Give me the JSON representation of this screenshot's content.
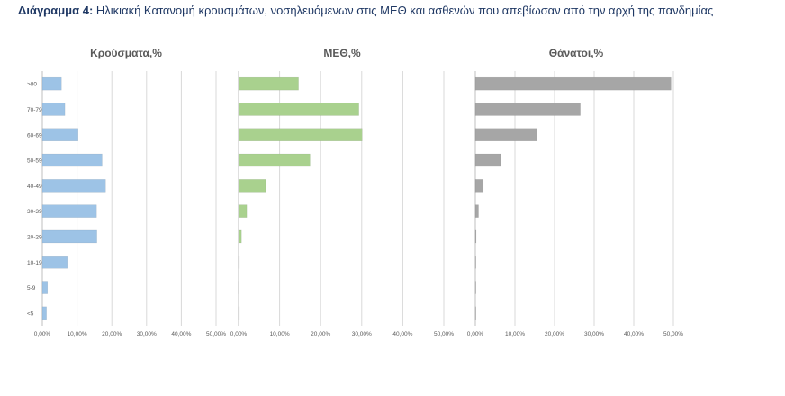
{
  "caption": {
    "label": "Διάγραμμα 4:",
    "text": "Ηλικιακή Κατανομή κρουσμάτων, νοσηλευόμενων στις ΜΕΘ και ασθενών που απεβίωσαν από την αρχή της πανδημίας"
  },
  "chart_data": [
    {
      "type": "bar",
      "orientation": "horizontal",
      "title": "Κρούσματα,%",
      "categories": [
        ">80",
        "70-79",
        "60-69",
        "50-59",
        "40-49",
        "30-39",
        "20-29",
        "10-19",
        "5-9",
        "<5"
      ],
      "values": [
        5.5,
        6.5,
        10.3,
        17.2,
        18.2,
        15.6,
        15.7,
        7.2,
        1.5,
        1.2
      ],
      "xlim": [
        0,
        50
      ],
      "xticks": [
        "0,00%",
        "10,00%",
        "20,00%",
        "30,00%",
        "40,00%",
        "50,00%"
      ],
      "grid": true,
      "color": "#9dc3e6"
    },
    {
      "type": "bar",
      "orientation": "horizontal",
      "title": "ΜΕΘ,%",
      "categories": [
        ">80",
        "70-79",
        "60-69",
        "50-59",
        "40-49",
        "30-39",
        "20-29",
        "10-19",
        "5-9",
        "<5"
      ],
      "values": [
        14.6,
        29.3,
        30.1,
        17.4,
        6.6,
        2.0,
        0.7,
        0.2,
        0.1,
        0.2
      ],
      "xlim": [
        0,
        50
      ],
      "xticks": [
        "0,00%",
        "10,00%",
        "20,00%",
        "30,00%",
        "40,00%",
        "50,00%"
      ],
      "grid": true,
      "color": "#a9d18e"
    },
    {
      "type": "bar",
      "orientation": "horizontal",
      "title": "Θάνατοι,%",
      "categories": [
        ">80",
        "70-79",
        "60-69",
        "50-59",
        "40-49",
        "30-39",
        "20-29",
        "10-19",
        "5-9",
        "<5"
      ],
      "values": [
        49.4,
        26.5,
        15.5,
        6.4,
        2.0,
        0.8,
        0.2,
        0.05,
        0.02,
        0.02
      ],
      "xlim": [
        0,
        50
      ],
      "xticks": [
        "0,00%",
        "10,00%",
        "20,00%",
        "30,00%",
        "40,00%",
        "50,00%"
      ],
      "grid": true,
      "color": "#a6a6a6"
    }
  ]
}
